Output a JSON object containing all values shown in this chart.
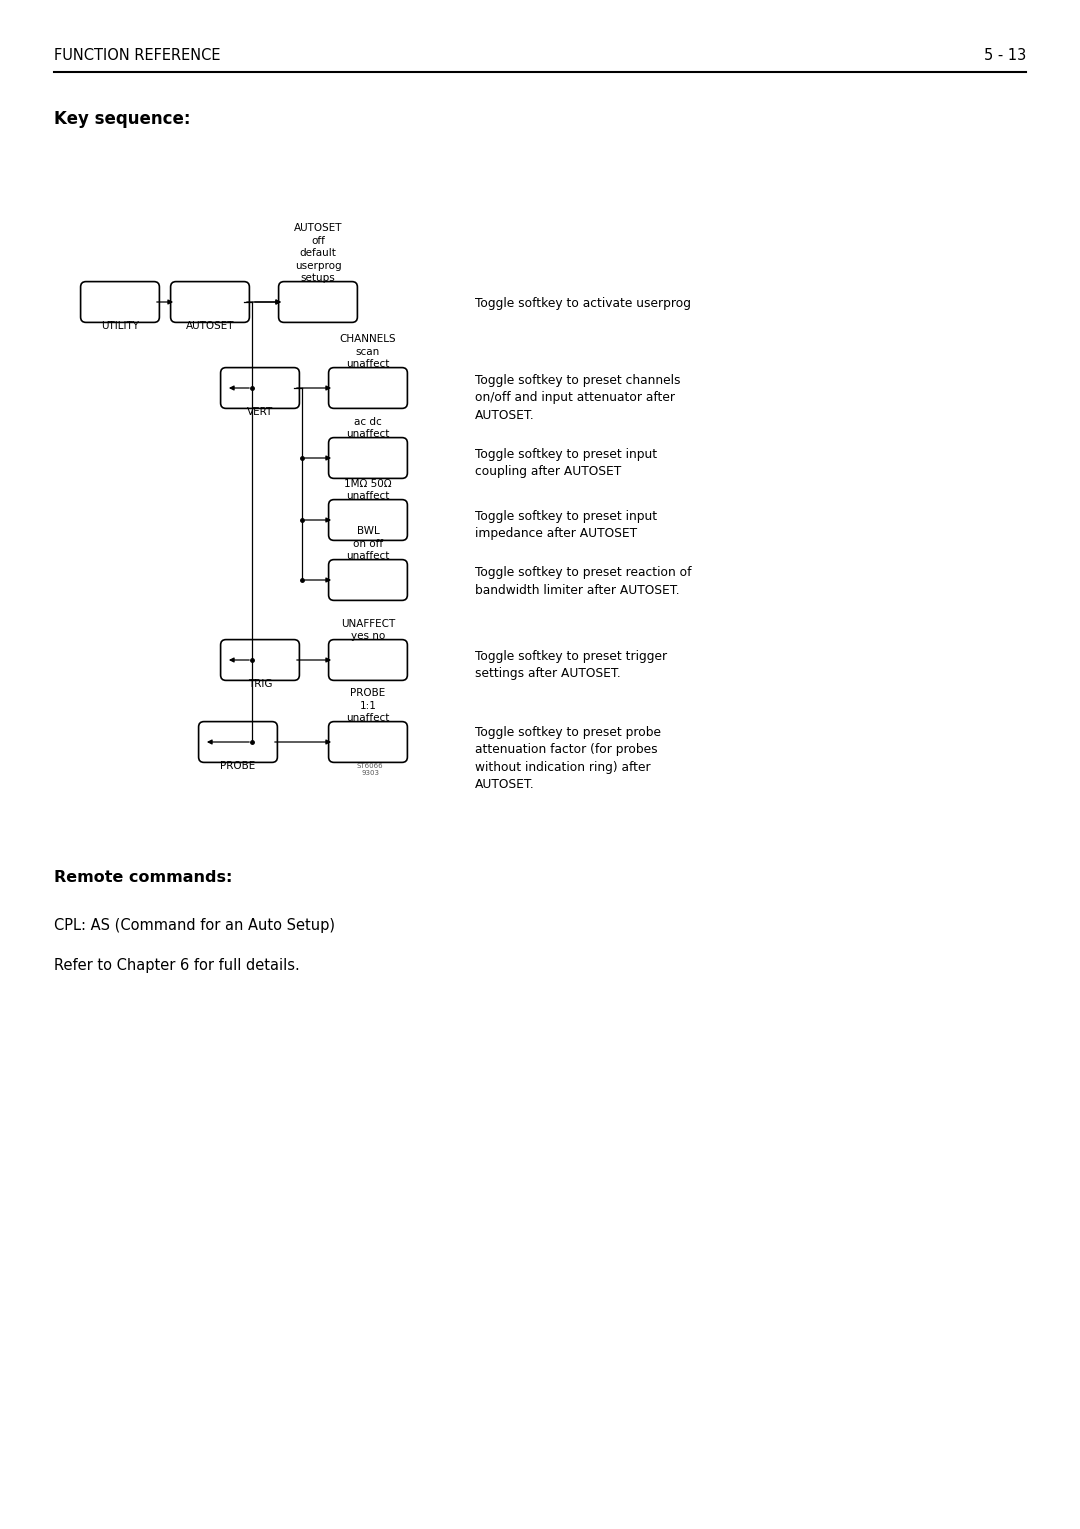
{
  "header_left": "FUNCTION REFERENCE",
  "header_right": "5 - 13",
  "section_title": "Key sequence:",
  "remote_title": "Remote commands:",
  "remote_line1": "CPL: AS (Command for an Auto Setup)",
  "remote_line2": "Refer to Chapter 6 for full details.",
  "watermark": "ST6066\n9303",
  "bg_color": "#ffffff",
  "text_color": "#000000",
  "btn_labels_above": {
    "autoset_btn": "AUTOSET\noff\ndefault\nuserprog\nsetups",
    "channels": "CHANNELS\nscan\nunaffect",
    "coupling": "ac dc\nunaffect",
    "impedance": "1MΩ 50Ω\nunaffect",
    "bwl": "BWL\non off\nunaffect",
    "unaffect": "UNAFFECT\nyes no",
    "probe_btn": "PROBE\n1:1\nunaffect"
  },
  "annotations": [
    "Toggle softkey to activate userprog",
    "Toggle softkey to preset channels\non/off and input attenuator after\nAUTOSET.",
    "Toggle softkey to preset input\ncoupling after AUTOSET",
    "Toggle softkey to preset input\nimpedance after AUTOSET",
    "Toggle softkey to preset reaction of\nbandwidth limiter after AUTOSET.",
    "Toggle softkey to preset trigger\nsettings after AUTOSET.",
    "Toggle softkey to preset probe\nattenuation factor (for probes\nwithout indication ring) after\nAUTOSET."
  ]
}
